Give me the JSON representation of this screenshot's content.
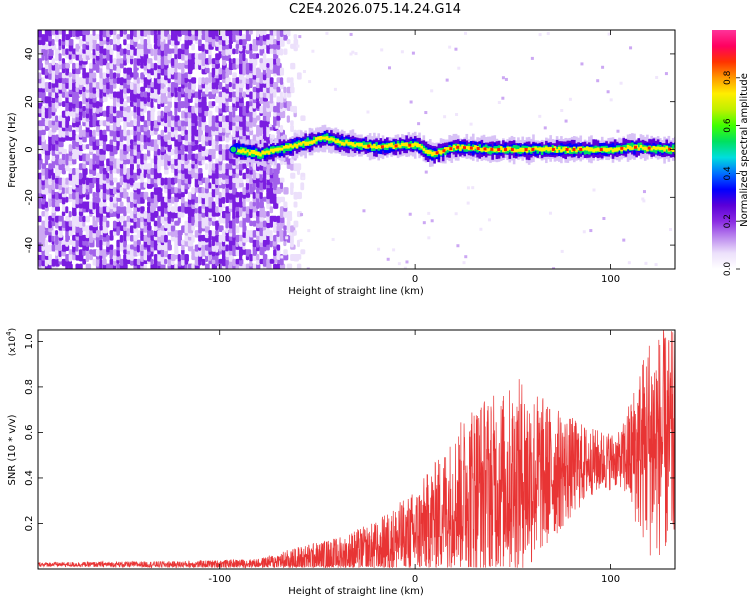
{
  "title": "C2E4.2026.075.14.24.G14",
  "colors": {
    "snr_line": "#e83434",
    "axis": "#000000"
  },
  "chart_data": [
    {
      "type": "heatmap",
      "name": "spectrogram",
      "xlabel": "Height of straight line (km)",
      "ylabel": "Frequency (Hz)",
      "xlim": [
        -193,
        133
      ],
      "ylim": [
        -50,
        50
      ],
      "xticks": [
        -100,
        0,
        100
      ],
      "yticks": [
        -40,
        -20,
        0,
        20,
        40
      ],
      "colorbar": {
        "label": "Normalized spectral amplitude",
        "ticks": [
          0.0,
          0.2,
          0.4,
          0.6,
          0.8
        ],
        "range": [
          0,
          1
        ],
        "colormap": [
          "#ffffff",
          "#ece0fb",
          "#bb88ee",
          "#8a2be2",
          "#5a00d8",
          "#0000ff",
          "#0070ff",
          "#00dede",
          "#00e060",
          "#40ff00",
          "#c0f000",
          "#ffee00",
          "#ff9900",
          "#ff3300",
          "#ff0060",
          "#ff3399"
        ]
      },
      "ridge": [
        {
          "x": -93,
          "f": 0
        },
        {
          "x": -80,
          "f": -2
        },
        {
          "x": -70,
          "f": 0
        },
        {
          "x": -60,
          "f": 2
        },
        {
          "x": -46,
          "f": 5
        },
        {
          "x": -40,
          "f": 3
        },
        {
          "x": -20,
          "f": 1
        },
        {
          "x": 0,
          "f": 2
        },
        {
          "x": 8,
          "f": -2
        },
        {
          "x": 20,
          "f": 1
        },
        {
          "x": 40,
          "f": 0
        },
        {
          "x": 60,
          "f": 0
        },
        {
          "x": 80,
          "f": 0
        },
        {
          "x": 100,
          "f": 0
        },
        {
          "x": 110,
          "f": 1
        },
        {
          "x": 133,
          "f": 0
        }
      ],
      "noise_region": [
        -193,
        -75
      ]
    },
    {
      "type": "line",
      "name": "snr",
      "xlabel": "Height of straight line (km)",
      "ylabel": "SNR (10 * v/v)",
      "y_multiplier": "(x10",
      "y_multiplier_exp": "4",
      "xlim": [
        -193,
        133
      ],
      "ylim": [
        0,
        1.05
      ],
      "xticks": [
        -100,
        0,
        100
      ],
      "yticks": [
        0.2,
        0.4,
        0.6,
        0.8,
        1.0
      ],
      "ytick_labels": [
        "0.2",
        "0.4",
        "0.6",
        "0.8",
        "1.0"
      ],
      "series": [
        {
          "name": "SNR",
          "envelope": [
            {
              "x": -193,
              "base": 0.02,
              "amp": 0.01
            },
            {
              "x": -120,
              "base": 0.02,
              "amp": 0.015
            },
            {
              "x": -80,
              "base": 0.025,
              "amp": 0.02
            },
            {
              "x": -60,
              "base": 0.04,
              "amp": 0.06
            },
            {
              "x": -40,
              "base": 0.06,
              "amp": 0.08
            },
            {
              "x": -20,
              "base": 0.09,
              "amp": 0.12
            },
            {
              "x": 0,
              "base": 0.15,
              "amp": 0.2
            },
            {
              "x": 10,
              "base": 0.22,
              "amp": 0.25
            },
            {
              "x": 20,
              "base": 0.3,
              "amp": 0.3
            },
            {
              "x": 30,
              "base": 0.35,
              "amp": 0.4
            },
            {
              "x": 45,
              "base": 0.38,
              "amp": 0.4
            },
            {
              "x": 55,
              "base": 0.4,
              "amp": 0.45
            },
            {
              "x": 70,
              "base": 0.42,
              "amp": 0.3
            },
            {
              "x": 90,
              "base": 0.47,
              "amp": 0.15
            },
            {
              "x": 105,
              "base": 0.48,
              "amp": 0.12
            },
            {
              "x": 110,
              "base": 0.5,
              "amp": 0.25
            },
            {
              "x": 120,
              "base": 0.55,
              "amp": 0.5
            },
            {
              "x": 133,
              "base": 0.55,
              "amp": 0.5
            }
          ]
        }
      ]
    }
  ]
}
